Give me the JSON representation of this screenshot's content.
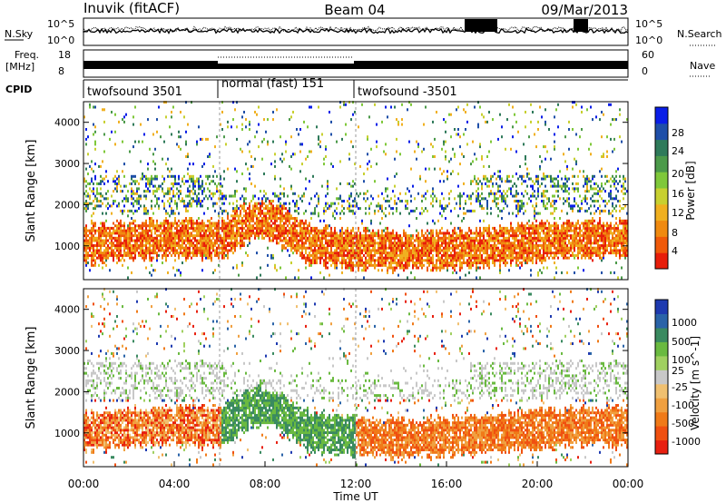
{
  "header": {
    "station": "Inuvik (fitACF)",
    "beam": "Beam 04",
    "date": "09/Mar/2013"
  },
  "noise_panel": {
    "left_label": "N.Sky",
    "right_label": "N.Search",
    "left_ticks": [
      "10^5",
      "10^0"
    ],
    "right_ticks": [
      "10^5",
      "10^0"
    ]
  },
  "freq_panel": {
    "left_label_1": "Freq.",
    "left_label_2": "[MHz]",
    "left_ticks": [
      "18",
      "8"
    ],
    "right_label": "Nave",
    "right_ticks": [
      "60",
      "0"
    ]
  },
  "cpid_panel": {
    "label": "CPID",
    "segments": [
      {
        "label": "twofsound 3501",
        "start_hour": 0,
        "end_hour": 6
      },
      {
        "label": "normal (fast) 151",
        "start_hour": 6,
        "end_hour": 12
      },
      {
        "label": "twofsound -3501",
        "start_hour": 12,
        "end_hour": 24
      }
    ]
  },
  "chart_data": [
    {
      "type": "heatmap",
      "name": "Power",
      "ylabel": "Slant Range [km]",
      "xlabel": "Time UT",
      "xlim_hours": [
        0,
        24
      ],
      "ylim": [
        180,
        4500
      ],
      "yticks": [
        1000,
        2000,
        3000,
        4000
      ],
      "xticks": [
        "00:00",
        "04:00",
        "08:00",
        "12:00",
        "16:00",
        "20:00",
        "00:00"
      ],
      "colorbar": {
        "label": "Power [dB]",
        "ticks": [
          "4",
          "8",
          "12",
          "16",
          "20",
          "24",
          "28"
        ],
        "colors": [
          "#0a1ee8",
          "#1f4fa8",
          "#2f7a5a",
          "#4c9a4a",
          "#7fc83a",
          "#c8d030",
          "#f0b020",
          "#f08a10",
          "#f05a0a",
          "#e81e0a"
        ]
      }
    },
    {
      "type": "heatmap",
      "name": "Velocity",
      "ylabel": "Slant Range [km]",
      "xlabel": "Time UT",
      "xlim_hours": [
        0,
        24
      ],
      "ylim": [
        180,
        4500
      ],
      "yticks": [
        1000,
        2000,
        3000,
        4000
      ],
      "xticks": [
        "00:00",
        "04:00",
        "08:00",
        "12:00",
        "16:00",
        "20:00",
        "00:00"
      ],
      "colorbar": {
        "label": "Velocity [m s^-1]",
        "ticks": [
          "1000",
          "500",
          "100",
          "25",
          "-25",
          "-100",
          "-500",
          "-1000"
        ],
        "colors": [
          "#1e3ab0",
          "#2a63a8",
          "#3a8a60",
          "#6aba40",
          "#a0d060",
          "#c8c8c8",
          "#f0c070",
          "#f0a040",
          "#f07a18",
          "#f05010",
          "#e82010"
        ]
      }
    }
  ]
}
